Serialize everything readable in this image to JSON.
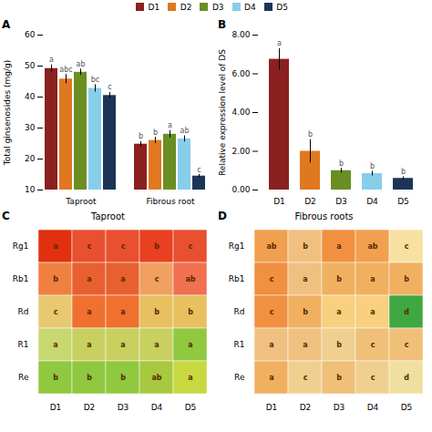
{
  "chart_data": [
    {
      "type": "bar",
      "panel_label": "A",
      "categories": [
        "Taproot",
        "Fibrous root"
      ],
      "series": [
        {
          "name": "D1",
          "color": "#8B2020",
          "values": [
            49.2,
            24.8
          ],
          "errors": [
            1.2,
            0.8
          ],
          "letters": [
            "a",
            "b"
          ]
        },
        {
          "name": "D2",
          "color": "#E07820",
          "values": [
            45.8,
            26.0
          ],
          "errors": [
            1.5,
            1.0
          ],
          "letters": [
            "abc",
            "b"
          ]
        },
        {
          "name": "D3",
          "color": "#6B8E23",
          "values": [
            48.0,
            28.0
          ],
          "errors": [
            1.0,
            1.2
          ],
          "letters": [
            "ab",
            "a"
          ]
        },
        {
          "name": "D4",
          "color": "#87CEEB",
          "values": [
            42.8,
            26.5
          ],
          "errors": [
            1.2,
            1.0
          ],
          "letters": [
            "bc",
            "ab"
          ]
        },
        {
          "name": "D5",
          "color": "#1C3557",
          "values": [
            40.5,
            14.5
          ],
          "errors": [
            1.0,
            0.5
          ],
          "letters": [
            "c",
            "c"
          ]
        }
      ],
      "ylabel": "Total ginsenosides (mg/g)",
      "ylim": [
        10,
        60
      ],
      "yticks": [
        10,
        20,
        30,
        40,
        50,
        60
      ],
      "legend": "top"
    },
    {
      "type": "bar",
      "panel_label": "B",
      "categories": [
        "D1",
        "D2",
        "D3",
        "D4",
        "D5"
      ],
      "values": [
        6.75,
        2.0,
        1.0,
        0.85,
        0.6
      ],
      "errors": [
        0.55,
        0.6,
        0.12,
        0.12,
        0.08
      ],
      "letters": [
        "a",
        "b",
        "b",
        "b",
        "b"
      ],
      "colors": [
        "#8B2020",
        "#E07820",
        "#6B8E23",
        "#87CEEB",
        "#1C3557"
      ],
      "ylabel": "Relative expression level of DS",
      "ylim": [
        0,
        8.0
      ],
      "yticks": [
        {
          "value": 0,
          "label": "0.00"
        },
        {
          "value": 2,
          "label": "2.00"
        },
        {
          "value": 4,
          "label": "4.00"
        },
        {
          "value": 6,
          "label": "6.00"
        },
        {
          "value": 8,
          "label": "8.00"
        }
      ]
    },
    {
      "type": "heatmap",
      "panel_label": "C",
      "title": "Taproot",
      "rows": [
        "Rg1",
        "Rb1",
        "Rd",
        "R1",
        "Re"
      ],
      "columns": [
        "D1",
        "D2",
        "D3",
        "D4",
        "D5"
      ],
      "cell_labels": [
        [
          "a",
          "c",
          "c",
          "b",
          "c"
        ],
        [
          "b",
          "a",
          "a",
          "c",
          "ab"
        ],
        [
          "c",
          "a",
          "a",
          "b",
          "b"
        ],
        [
          "a",
          "a",
          "a",
          "a",
          "a"
        ],
        [
          "b",
          "b",
          "b",
          "ab",
          "a"
        ]
      ],
      "colors": [
        [
          "#E03010",
          "#E85030",
          "#E85030",
          "#E84020",
          "#E85030"
        ],
        [
          "#F08040",
          "#E86030",
          "#E86030",
          "#F0A060",
          "#F07050"
        ],
        [
          "#E8C870",
          "#F07030",
          "#F07030",
          "#E8C060",
          "#E8C060"
        ],
        [
          "#C8D870",
          "#C8D060",
          "#C8D060",
          "#C8D060",
          "#90C840"
        ],
        [
          "#90C840",
          "#90C840",
          "#90C840",
          "#A8C840",
          "#C8D840"
        ]
      ]
    },
    {
      "type": "heatmap",
      "panel_label": "D",
      "title": "Fibrous roots",
      "rows": [
        "Rg1",
        "Rb1",
        "Rd",
        "R1",
        "Re"
      ],
      "columns": [
        "D1",
        "D2",
        "D3",
        "D4",
        "D5"
      ],
      "cell_labels": [
        [
          "ab",
          "b",
          "a",
          "ab",
          "c"
        ],
        [
          "c",
          "a",
          "b",
          "a",
          "b"
        ],
        [
          "c",
          "b",
          "a",
          "a",
          "d"
        ],
        [
          "a",
          "a",
          "b",
          "c",
          "c"
        ],
        [
          "a",
          "c",
          "b",
          "c",
          "d"
        ]
      ],
      "colors": [
        [
          "#F0A050",
          "#F0C080",
          "#F09040",
          "#F0A050",
          "#F8E0A0"
        ],
        [
          "#F09040",
          "#F0C080",
          "#F0B060",
          "#F0B060",
          "#F0B060"
        ],
        [
          "#F09040",
          "#F0B060",
          "#F8D080",
          "#F8D080",
          "#40A840"
        ],
        [
          "#F0C080",
          "#F0C080",
          "#F0D090",
          "#F0C078",
          "#F0C078"
        ],
        [
          "#F0B060",
          "#F0D090",
          "#F0C078",
          "#F0D090",
          "#F0E0A0"
        ]
      ]
    }
  ]
}
